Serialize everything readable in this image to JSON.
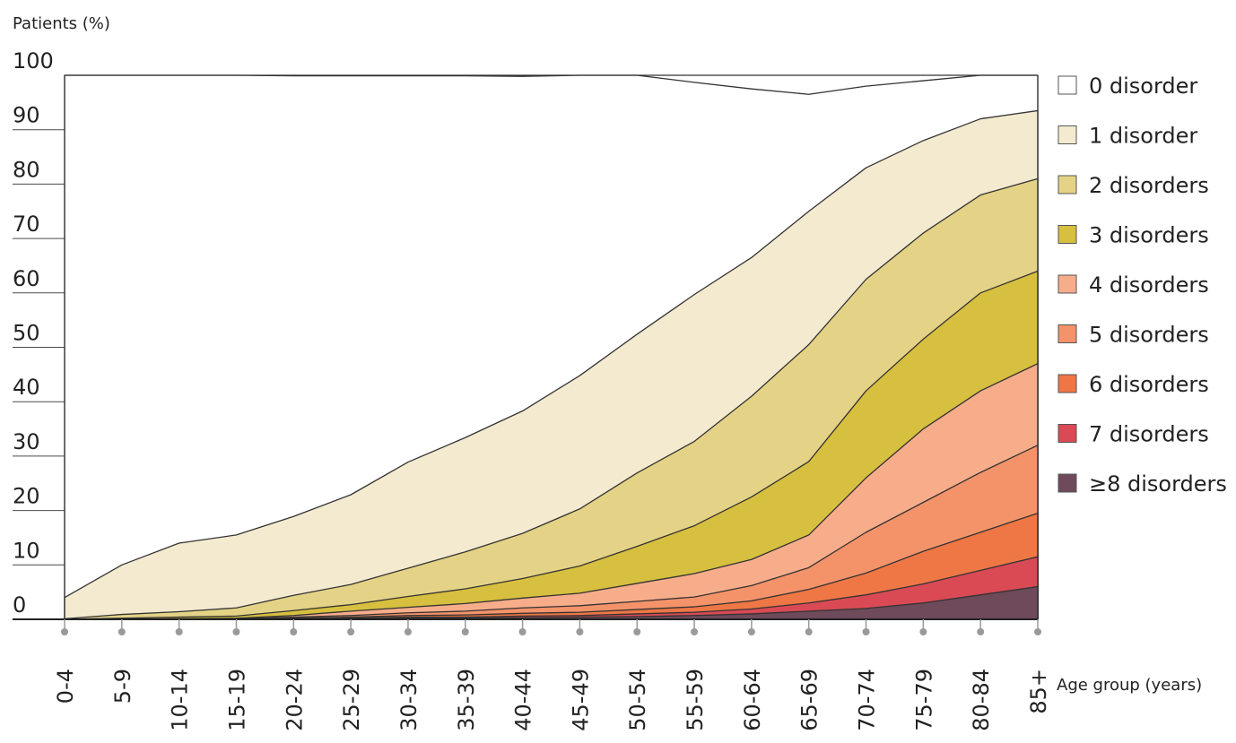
{
  "chart_data": {
    "type": "area",
    "stacked": true,
    "ylabel": "Patients (%)",
    "xlabel": "Age group (years)",
    "ylim": [
      0,
      100
    ],
    "yticks": [
      0,
      10,
      20,
      30,
      40,
      50,
      60,
      70,
      80,
      90,
      100
    ],
    "grid": true,
    "legend_position": "right",
    "categories": [
      "0-4",
      "5-9",
      "10-14",
      "15-19",
      "20-24",
      "25-29",
      "30-34",
      "35-39",
      "40-44",
      "45-49",
      "50-54",
      "55-59",
      "60-64",
      "65-69",
      "70-74",
      "75-79",
      "80-84",
      "85+"
    ],
    "series": [
      {
        "name": "0 disorder",
        "color": "#ffffff",
        "values": [
          96.0,
          90.0,
          86.0,
          84.5,
          81.0,
          77.0,
          71.0,
          66.5,
          61.5,
          56.0,
          48.0,
          39.0,
          31.0,
          21.5,
          15.0,
          11.0,
          8.0,
          6.5
        ]
      },
      {
        "name": "1 disorder",
        "color": "#f3ead0",
        "values": [
          3.9,
          9.1,
          12.6,
          13.4,
          14.5,
          16.5,
          19.5,
          21.0,
          22.5,
          24.5,
          25.5,
          27.0,
          25.5,
          24.5,
          20.5,
          17.0,
          14.0,
          12.5
        ]
      },
      {
        "name": "2 disorders",
        "color": "#e4d386",
        "values": [
          0.1,
          0.7,
          1.0,
          1.5,
          2.8,
          3.7,
          5.2,
          6.8,
          8.3,
          10.5,
          13.5,
          15.5,
          18.5,
          21.5,
          20.5,
          19.5,
          18.0,
          17.0
        ]
      },
      {
        "name": "3 disorders",
        "color": "#d7bf3f",
        "values": [
          0.0,
          0.2,
          0.3,
          0.4,
          0.9,
          1.2,
          2.0,
          2.7,
          3.6,
          5.0,
          6.8,
          8.8,
          11.5,
          13.5,
          16.0,
          16.5,
          18.0,
          17.0
        ]
      },
      {
        "name": "4 disorders",
        "color": "#f8ad8a",
        "values": [
          0.0,
          0.0,
          0.1,
          0.1,
          0.3,
          0.8,
          1.0,
          1.4,
          1.8,
          2.3,
          3.3,
          4.3,
          4.8,
          6.0,
          10.0,
          13.5,
          15.0,
          15.0
        ]
      },
      {
        "name": "5 disorders",
        "color": "#f4936a",
        "values": [
          0.0,
          0.0,
          0.0,
          0.1,
          0.2,
          0.3,
          0.5,
          0.7,
          1.0,
          1.2,
          1.5,
          1.8,
          2.8,
          4.0,
          7.5,
          9.0,
          11.0,
          12.5
        ]
      },
      {
        "name": "6 disorders",
        "color": "#ee7745",
        "values": [
          0.0,
          0.0,
          0.0,
          0.0,
          0.1,
          0.2,
          0.3,
          0.4,
          0.5,
          0.6,
          0.8,
          1.0,
          1.5,
          2.5,
          4.0,
          6.0,
          7.0,
          8.0
        ]
      },
      {
        "name": "7 disorders",
        "color": "#d94a55",
        "values": [
          0.0,
          0.0,
          0.0,
          0.0,
          0.1,
          0.1,
          0.2,
          0.2,
          0.3,
          0.3,
          0.5,
          0.6,
          0.9,
          1.5,
          2.5,
          3.5,
          4.5,
          5.5
        ]
      },
      {
        "name": "≥8 disorders",
        "color": "#6e4a5a",
        "values": [
          0.0,
          0.0,
          0.0,
          0.0,
          0.0,
          0.1,
          0.2,
          0.2,
          0.3,
          0.4,
          0.5,
          0.7,
          1.0,
          1.5,
          2.0,
          3.0,
          4.5,
          6.0
        ]
      }
    ]
  }
}
